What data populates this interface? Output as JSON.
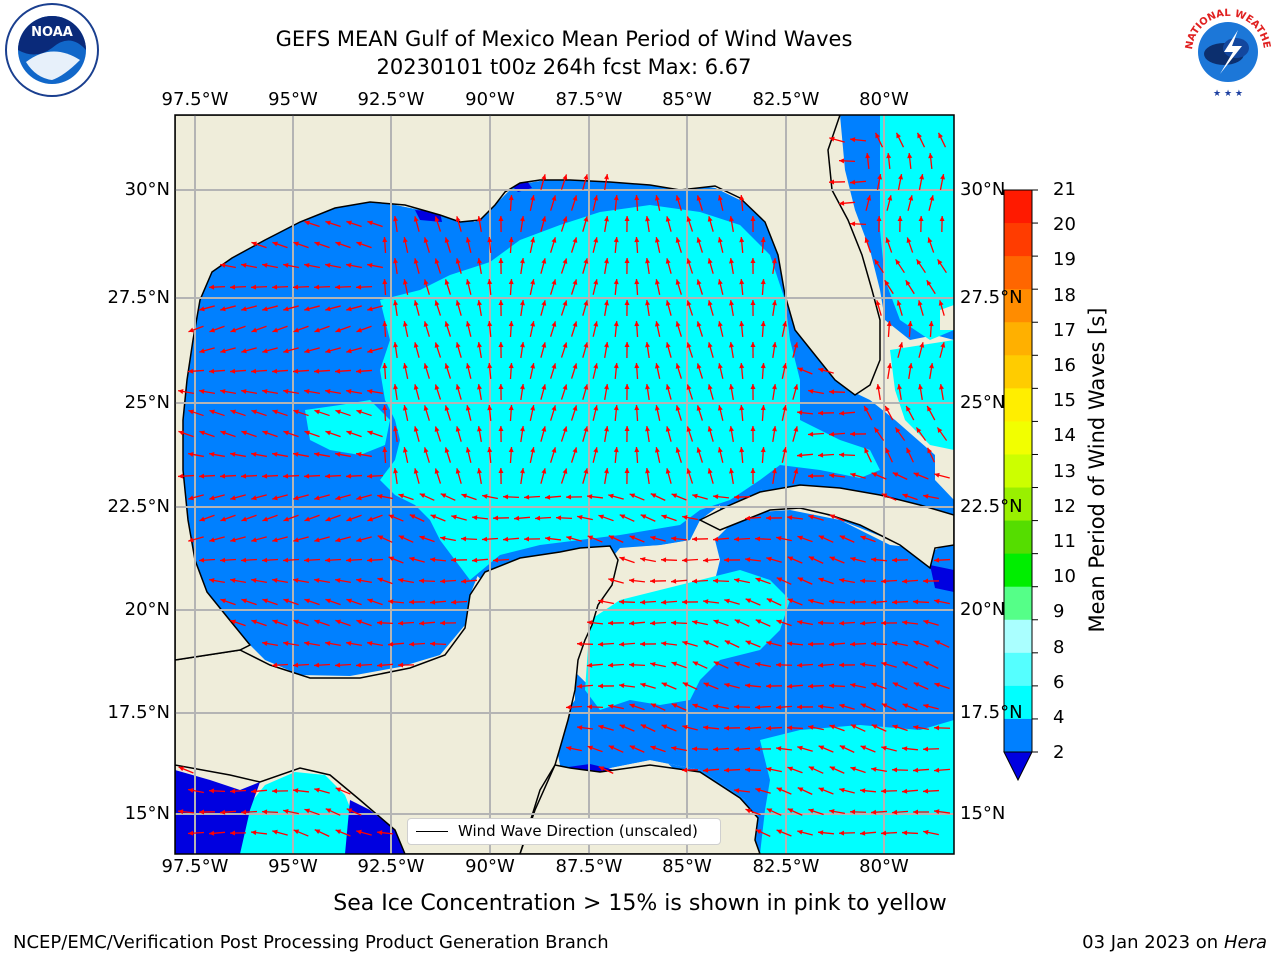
{
  "header": {
    "title_line1": "GEFS MEAN Gulf of Mexico Mean Period of Wind Waves",
    "title_line2": "20230101 t00z 264h fcst   Max: 6.67"
  },
  "logos": {
    "left": "NOAA",
    "right": "NATIONAL WEATHER SERVICE"
  },
  "map": {
    "lon_labels": [
      "97.5°W",
      "95°W",
      "92.5°W",
      "90°W",
      "87.5°W",
      "85°W",
      "82.5°W",
      "80°W"
    ],
    "lat_labels": [
      "30°N",
      "27.5°N",
      "25°N",
      "22.5°N",
      "20°N",
      "17.5°N",
      "15°N"
    ],
    "colors": {
      "land": "#efedda",
      "coast": "#000000",
      "grid": "#b4b4b4",
      "arrow": "#ff0000"
    },
    "legend_label": "Wind Wave Direction (unscaled)"
  },
  "colorbar": {
    "title": "Mean Period of Wind Waves [s]",
    "ticks": [
      "21",
      "20",
      "19",
      "18",
      "17",
      "16",
      "15",
      "14",
      "13",
      "12",
      "11",
      "10",
      "9",
      "8",
      "6",
      "4",
      "2"
    ],
    "colors": [
      "#ff1a00",
      "#ff3c00",
      "#ff6600",
      "#ff8c00",
      "#ffb000",
      "#ffcc00",
      "#ffee00",
      "#f2ff00",
      "#ccff00",
      "#99f000",
      "#55dd00",
      "#00ee00",
      "#55ff88",
      "#aaffff",
      "#55ffff",
      "#00ffff",
      "#0080ff"
    ]
  },
  "footer": {
    "ice_note": "Sea Ice Concentration > 15% is shown in pink to yellow",
    "left": "NCEP/EMC/Verification Post Processing Product Generation Branch",
    "date": "03 Jan 2023 on ",
    "host": "Hera"
  }
}
